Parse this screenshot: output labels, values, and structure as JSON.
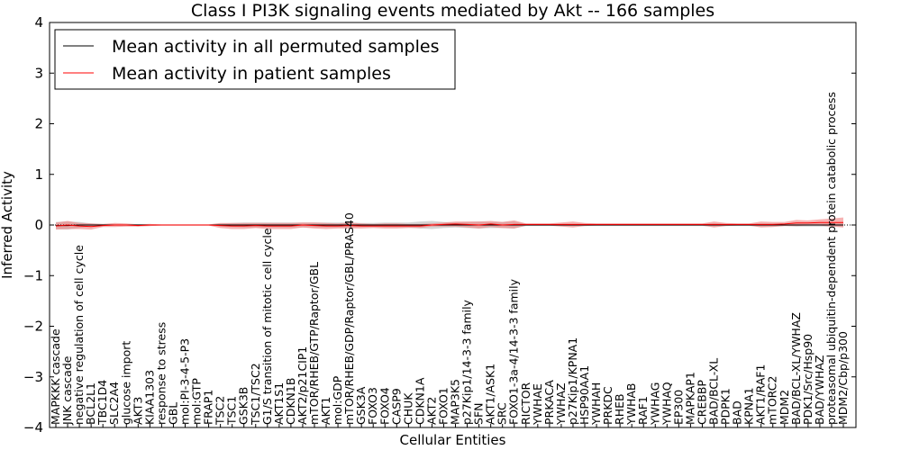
{
  "chart_data": {
    "type": "line",
    "title": "Class I PI3K signaling events mediated by Akt -- 166 samples",
    "xlabel": "Cellular Entities",
    "ylabel": "Inferred Activity",
    "ylim": [
      -4,
      4
    ],
    "yticks": [
      -4,
      -3,
      -2,
      -1,
      0,
      1,
      2,
      3,
      4
    ],
    "ytick_labels": [
      "−4",
      "−3",
      "−2",
      "−1",
      "0",
      "1",
      "2",
      "3",
      "4"
    ],
    "legend_position": "upper-left",
    "categories": [
      "MAPKKK cascade",
      "JNK cascade",
      "negative regulation of cell cycle",
      "BCL2L1",
      "TBC1D4",
      "SLC2A4",
      "glucose import",
      "AKT3",
      "KIAA1303",
      "response to stress",
      "GBL",
      "mol:PI-3-4-5-P3",
      "mol:GTP",
      "FRAP1",
      "TSC2",
      "TSC1",
      "GSK3B",
      "TSC1/TSC2",
      "G1/S transition of mitotic cell cycle",
      "AKT1S1",
      "CDKN1B",
      "AKT2/p21CIP1",
      "mTOR/RHEB/GTP/Raptor/GBL",
      "AKT1",
      "mol:GDP",
      "mTOR/RHEB/GDP/Raptor/GBL/PRAS40",
      "GSK3A",
      "FOXO3",
      "FOXO4",
      "CASP9",
      "CHUK",
      "CDKN1A",
      "AKT2",
      "FOXO1",
      "MAP3K5",
      "p27Kip1/14-3-3 family",
      "SFN",
      "AKT1/ASK1",
      "SRC",
      "FOXO1-3a-4/14-3-3 family",
      "RICTOR",
      "YWHAE",
      "PRKACA",
      "YWHAZ",
      "p27Kip1/KPNA1",
      "HSP90AA1",
      "YWHAH",
      "PRKDC",
      "RHEB",
      "YWHAB",
      "RAF1",
      "YWHAG",
      "YWHAQ",
      "EP300",
      "MAPKAP1",
      "CREBBP",
      "BAD/BCL-XL",
      "PDPK1",
      "BAD",
      "KPNA1",
      "AKT1/RAF1",
      "mTORC2",
      "MDM2",
      "BAD/BCL-XL/YWHAZ",
      "PDK1/Src/Hsp90",
      "BAD/YWHAZ",
      "proteasomal ubiquitin-dependent protein catabolic process",
      "MDM2/Cbp/p300"
    ],
    "series": [
      {
        "name": "Mean activity in all permuted samples",
        "color": "#000000",
        "values": [
          -0.01,
          -0.01,
          0.0,
          0.0,
          0.0,
          0.0,
          0.0,
          0.0,
          0.0,
          0.0,
          0.0,
          0.0,
          0.0,
          0.0,
          0.0,
          0.0,
          0.0,
          0.0,
          0.0,
          0.0,
          0.0,
          0.0,
          0.0,
          0.0,
          0.0,
          0.0,
          0.0,
          0.0,
          0.0,
          0.0,
          0.0,
          0.0,
          0.0,
          0.0,
          0.0,
          0.0,
          0.0,
          0.0,
          0.0,
          0.0,
          0.0,
          0.0,
          0.0,
          0.0,
          0.0,
          0.0,
          0.0,
          0.0,
          0.0,
          0.0,
          0.0,
          0.0,
          0.0,
          0.0,
          0.0,
          0.0,
          0.0,
          0.0,
          0.0,
          0.0,
          0.0,
          0.0,
          0.0,
          0.0,
          0.0,
          0.0,
          0.0,
          0.0
        ],
        "spread": [
          0.07,
          0.08,
          0.06,
          0.03,
          0.02,
          0.02,
          0.02,
          0.02,
          0.02,
          0.01,
          0.01,
          0.01,
          0.01,
          0.01,
          0.03,
          0.04,
          0.05,
          0.05,
          0.05,
          0.05,
          0.05,
          0.05,
          0.05,
          0.05,
          0.05,
          0.05,
          0.04,
          0.04,
          0.05,
          0.05,
          0.05,
          0.07,
          0.08,
          0.06,
          0.05,
          0.06,
          0.07,
          0.06,
          0.06,
          0.07,
          0.02,
          0.02,
          0.02,
          0.02,
          0.02,
          0.02,
          0.02,
          0.02,
          0.02,
          0.02,
          0.02,
          0.02,
          0.02,
          0.02,
          0.02,
          0.02,
          0.03,
          0.02,
          0.02,
          0.02,
          0.03,
          0.03,
          0.02,
          0.03,
          0.03,
          0.03,
          0.03,
          0.03
        ]
      },
      {
        "name": "Mean activity in patient samples",
        "color": "#ff0000",
        "fill": "#f08080",
        "values": [
          -0.02,
          0.0,
          -0.02,
          -0.03,
          -0.01,
          0.0,
          0.0,
          -0.01,
          0.0,
          0.0,
          0.0,
          0.0,
          0.0,
          0.0,
          -0.01,
          -0.02,
          -0.02,
          -0.01,
          -0.02,
          -0.02,
          -0.02,
          0.0,
          -0.01,
          -0.02,
          -0.02,
          -0.01,
          -0.02,
          -0.02,
          -0.02,
          -0.02,
          -0.02,
          -0.02,
          0.0,
          0.01,
          0.02,
          0.01,
          0.0,
          0.02,
          0.0,
          0.01,
          0.01,
          0.01,
          0.01,
          0.01,
          0.01,
          0.01,
          0.01,
          0.01,
          0.01,
          0.01,
          0.01,
          0.01,
          0.01,
          0.01,
          0.01,
          0.01,
          0.01,
          0.01,
          0.01,
          0.01,
          0.01,
          0.01,
          0.02,
          0.04,
          0.04,
          0.05,
          0.05,
          0.05
        ],
        "spread": [
          0.07,
          0.08,
          0.06,
          0.06,
          0.03,
          0.04,
          0.03,
          0.02,
          0.02,
          0.01,
          0.01,
          0.01,
          0.01,
          0.01,
          0.05,
          0.06,
          0.06,
          0.05,
          0.06,
          0.06,
          0.06,
          0.05,
          0.06,
          0.06,
          0.05,
          0.06,
          0.05,
          0.04,
          0.05,
          0.05,
          0.04,
          0.04,
          0.03,
          0.04,
          0.05,
          0.06,
          0.07,
          0.06,
          0.06,
          0.08,
          0.02,
          0.02,
          0.02,
          0.04,
          0.06,
          0.03,
          0.02,
          0.02,
          0.02,
          0.02,
          0.02,
          0.02,
          0.02,
          0.02,
          0.02,
          0.02,
          0.06,
          0.03,
          0.02,
          0.02,
          0.06,
          0.05,
          0.04,
          0.06,
          0.05,
          0.06,
          0.08,
          0.1
        ]
      }
    ]
  }
}
